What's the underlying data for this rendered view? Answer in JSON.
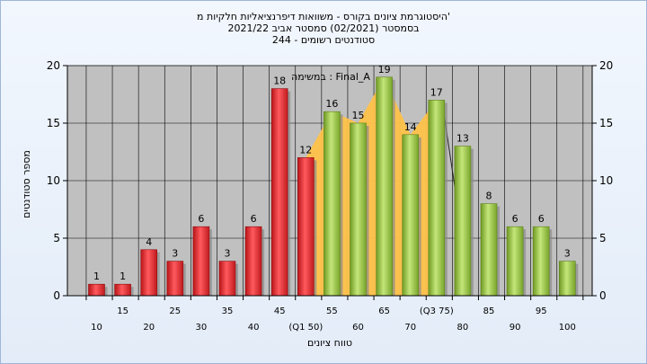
{
  "title_line1": "היסטוגרמת ציונים בקורס - משוואות דיפרנציאליות חלקיות מ'",
  "title_line2": "בסמסטר  (02/2021)  סמסטר אביב 2021/22",
  "title_line3": "סטודנטים רשומים - 244",
  "colors": {
    "fail": "#e0232a",
    "pass": "#8fbe3a",
    "area": "#ffc24a",
    "plot_bg": "#c0c0c0"
  },
  "chart_data": {
    "type": "bar",
    "title": "היסטוגרמת ציונים בקורס - משוואות דיפרנציאליות חלקיות מ'",
    "xlabel": "טווח ציונים",
    "ylabel": "מספר סטודנטים",
    "ylim": [
      0,
      20
    ],
    "yticks": [
      "0",
      "5",
      "10",
      "15",
      "20"
    ],
    "legend": "במשימה : Final_A",
    "categories": [
      "10",
      "15",
      "20",
      "25",
      "30",
      "35",
      "40",
      "45",
      "50",
      "55",
      "60",
      "65",
      "70",
      "75",
      "80",
      "85",
      "90",
      "95",
      "100"
    ],
    "category_labels": [
      "10",
      "15",
      "20",
      "25",
      "30",
      "35",
      "40",
      "45",
      "(Q1 50)",
      "55",
      "60",
      "65",
      "70",
      "(Q3 75)",
      "80",
      "85",
      "90",
      "95",
      "100"
    ],
    "values": [
      1,
      1,
      4,
      3,
      6,
      3,
      6,
      18,
      12,
      16,
      15,
      19,
      14,
      17,
      13,
      8,
      6,
      6,
      3
    ],
    "value_labels": [
      "1",
      "1",
      "4",
      "3",
      "6",
      "3",
      "6",
      "18",
      "12",
      "16",
      "15",
      "19",
      "14",
      "17",
      "13",
      "8",
      "6",
      "6",
      "3"
    ],
    "status": [
      "fail",
      "fail",
      "fail",
      "fail",
      "fail",
      "fail",
      "fail",
      "fail",
      "fail",
      "pass",
      "pass",
      "pass",
      "pass",
      "pass",
      "pass",
      "pass",
      "pass",
      "pass",
      "pass"
    ],
    "interquartile_range": [
      "50",
      "75"
    ]
  }
}
